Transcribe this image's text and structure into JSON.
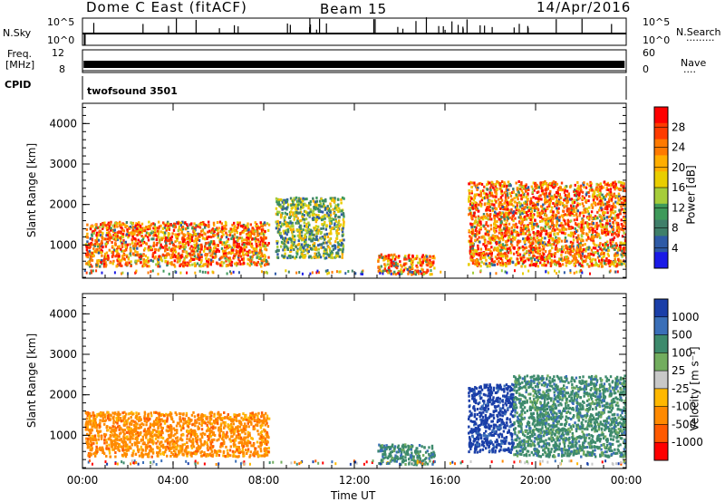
{
  "header": {
    "station": "Dome C East (fitACF)",
    "beam": "Beam 15",
    "date": "14/Apr/2016"
  },
  "strips": {
    "nsky_label": "N.Sky",
    "nsky_ticks": [
      "10^5",
      "10^0"
    ],
    "nsearch_ticks": [
      "10^5",
      "10^0"
    ],
    "nsearch_label": "N.Search",
    "nsearch_dots": "·········",
    "freq_label_1": "Freq.",
    "freq_label_2": "[MHz]",
    "freq_ticks": [
      "12",
      "8"
    ],
    "nave_ticks": [
      "60",
      "0"
    ],
    "nave_label": "Nave",
    "nave_dots": "····",
    "cpid_label": "CPID",
    "cpid_value": "twofsound 3501"
  },
  "chart_data": [
    {
      "type": "heatmap",
      "name": "power",
      "ylabel": "Slant Range [km]",
      "xlabel": "Time UT",
      "x_ticks": [
        "00:00",
        "04:00",
        "08:00",
        "12:00",
        "16:00",
        "20:00",
        "00:00"
      ],
      "xlim_hours": [
        0,
        24
      ],
      "y_ticks": [
        1000,
        2000,
        3000,
        4000
      ],
      "ylim_km": [
        180,
        4500
      ],
      "colorbar": {
        "label": "Power [dB]",
        "ticks": [
          "28",
          "24",
          "20",
          "16",
          "12",
          "8",
          "4"
        ],
        "colors": [
          "#ff0000",
          "#ff3b00",
          "#ff7a00",
          "#ffae00",
          "#e9ce00",
          "#a6cd3a",
          "#3e9a5a",
          "#3f7f6a",
          "#2e5aa6",
          "#1a1ae6"
        ]
      },
      "regions": [
        {
          "t": [
            0.1,
            8.2
          ],
          "r": [
            500,
            1600
          ],
          "level": "high"
        },
        {
          "t": [
            8.5,
            11.5
          ],
          "r": [
            700,
            2200
          ],
          "level": "mid"
        },
        {
          "t": [
            13.0,
            15.5
          ],
          "r": [
            300,
            800
          ],
          "level": "high"
        },
        {
          "t": [
            17.0,
            24.0
          ],
          "r": [
            500,
            2600
          ],
          "level": "high"
        }
      ]
    },
    {
      "type": "heatmap",
      "name": "velocity",
      "ylabel": "Slant Range [km]",
      "xlabel": "Time UT",
      "x_ticks": [
        "00:00",
        "04:00",
        "08:00",
        "12:00",
        "16:00",
        "20:00",
        "00:00"
      ],
      "xlim_hours": [
        0,
        24
      ],
      "y_ticks": [
        1000,
        2000,
        3000,
        4000
      ],
      "ylim_km": [
        180,
        4500
      ],
      "colorbar": {
        "label": "Velocity [m s⁻¹]",
        "ticks": [
          "1000",
          "500",
          "100",
          "25",
          "-25",
          "-100",
          "-500",
          "-1000"
        ],
        "colors": [
          "#1a3ea8",
          "#3a6fb8",
          "#3d8a6c",
          "#72ad5e",
          "#c8c8c8",
          "#ffb800",
          "#ff8a00",
          "#ff5a00",
          "#ff0000"
        ]
      },
      "regions": [
        {
          "t": [
            0.1,
            8.2
          ],
          "r": [
            500,
            1600
          ],
          "velocity": "-500"
        },
        {
          "t": [
            13.0,
            15.5
          ],
          "r": [
            300,
            800
          ],
          "velocity": "100"
        },
        {
          "t": [
            17.0,
            19.0
          ],
          "r": [
            600,
            2300
          ],
          "velocity": "1000"
        },
        {
          "t": [
            19.0,
            24.0
          ],
          "r": [
            500,
            2500
          ],
          "velocity": "100"
        }
      ]
    }
  ]
}
